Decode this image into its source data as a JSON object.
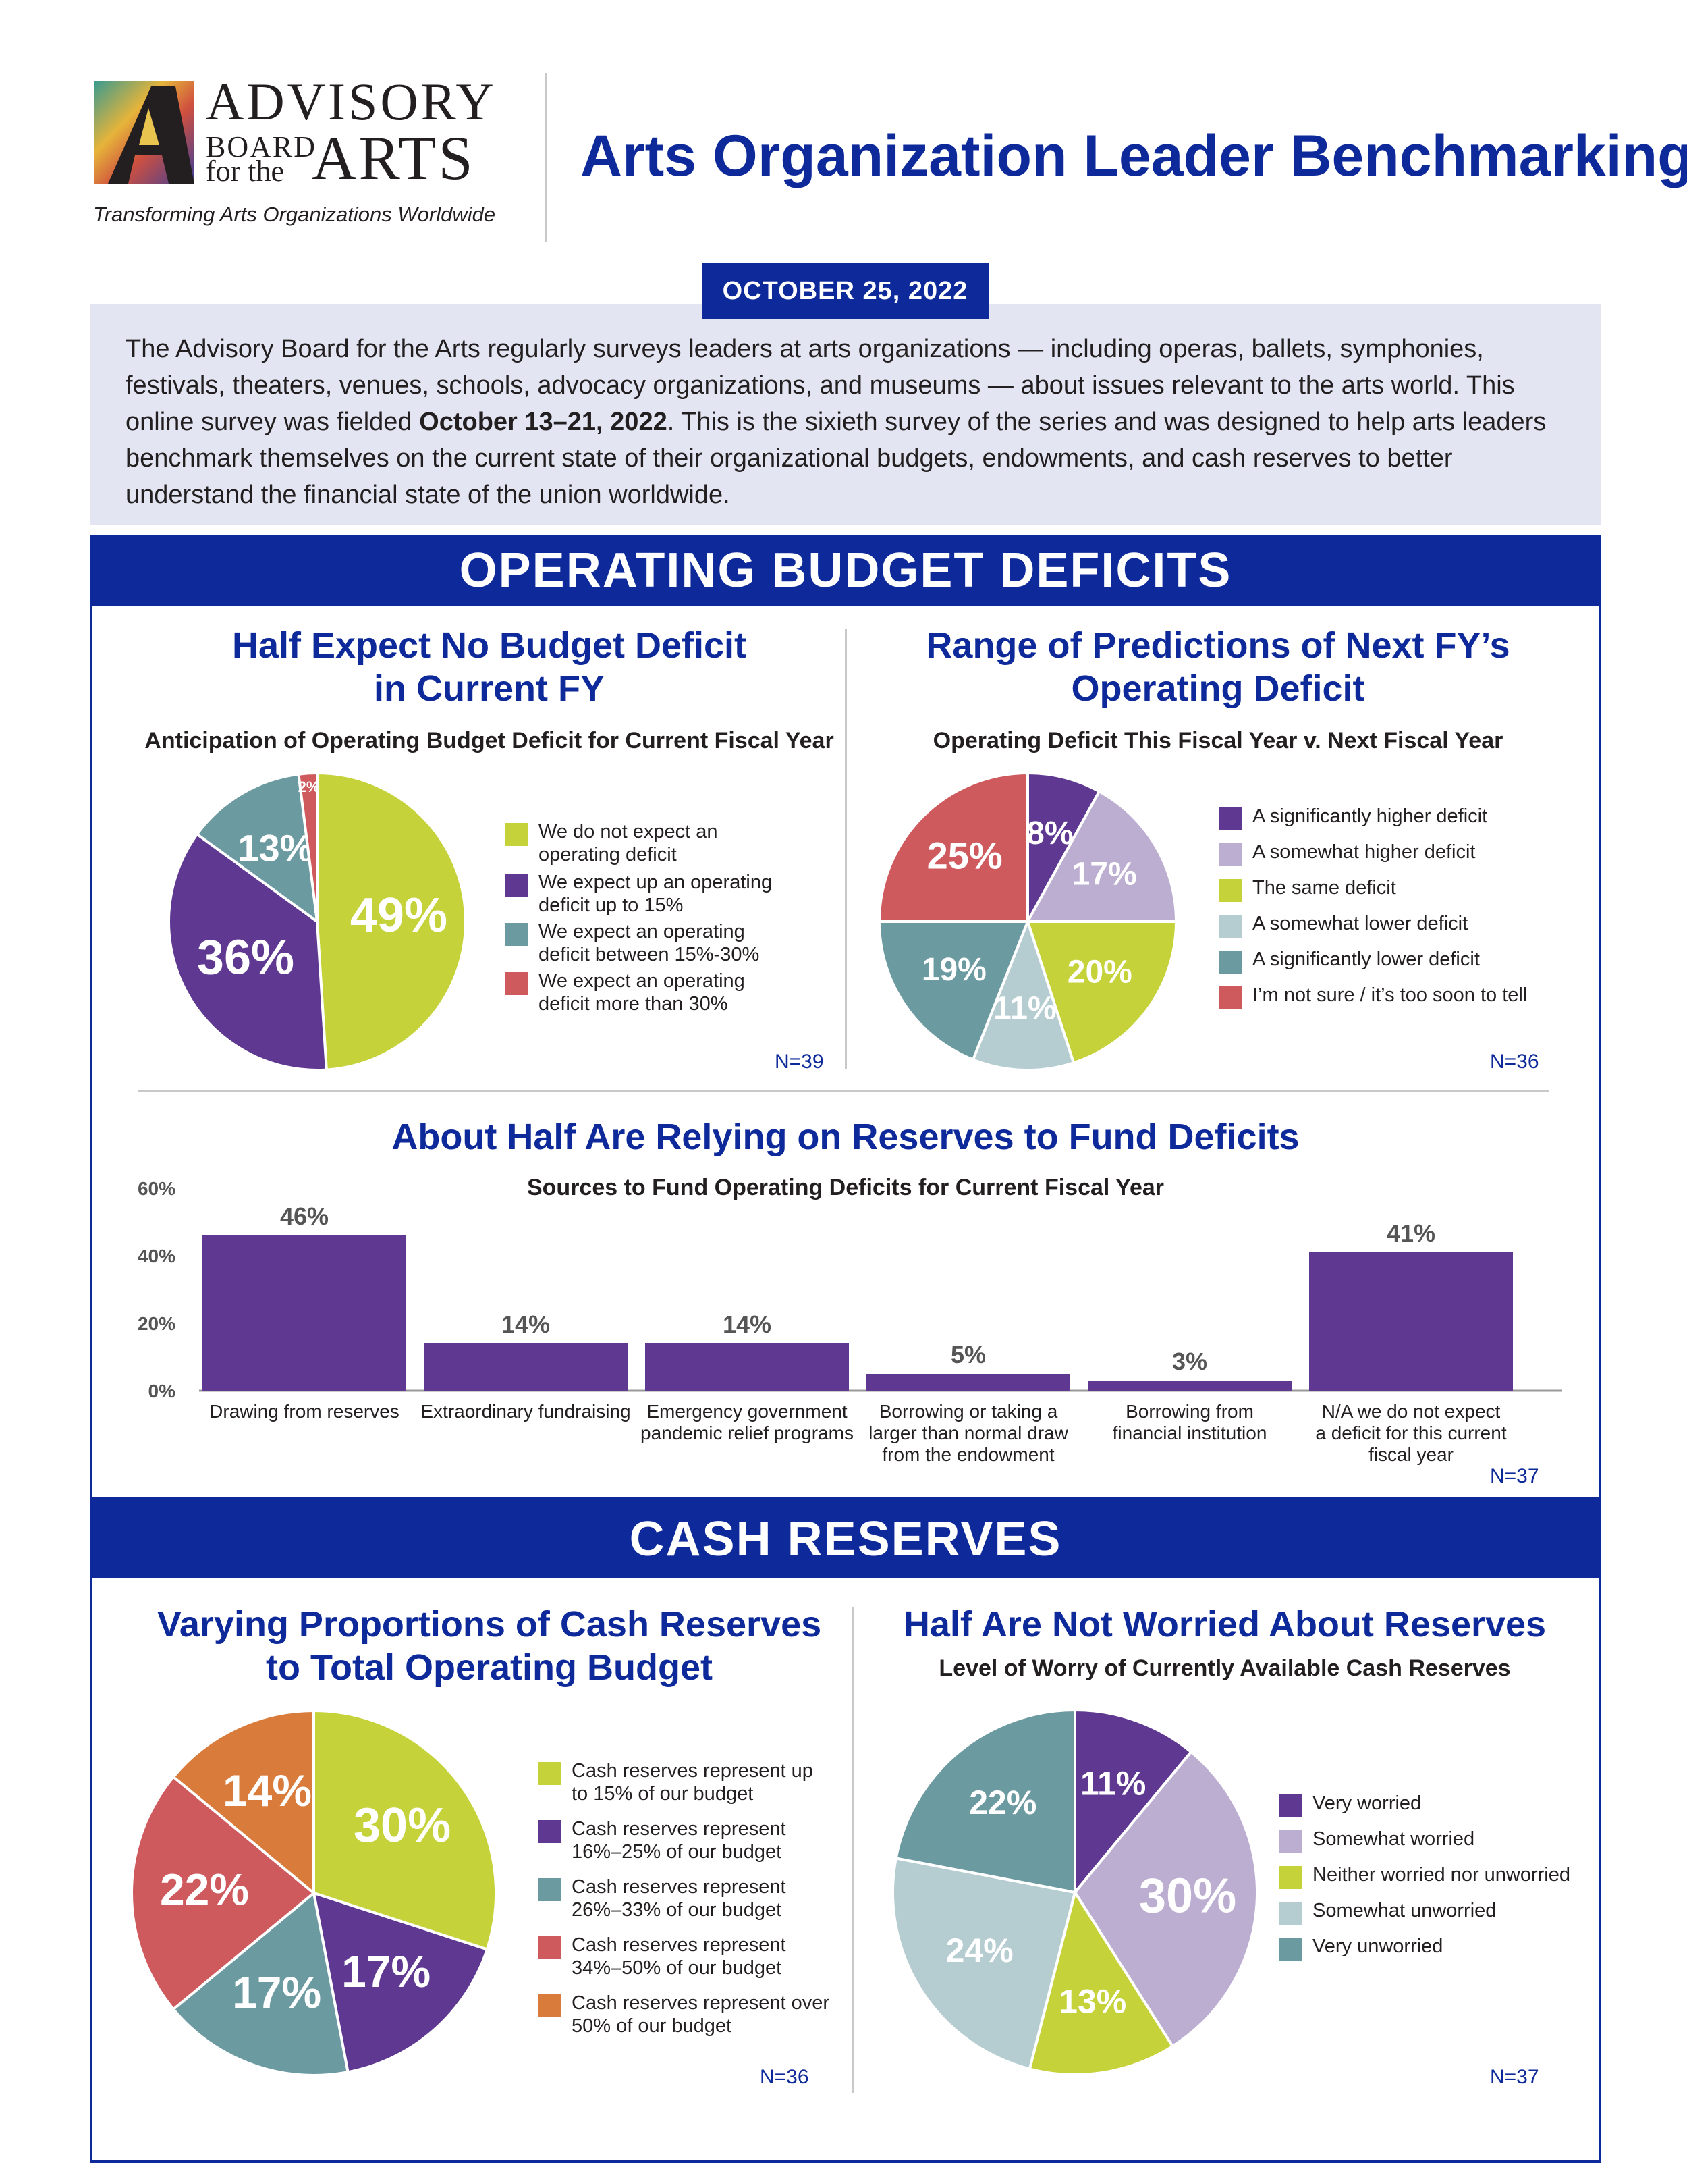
{
  "logo": {
    "line1": "ADVISORY",
    "line2": "BOARD",
    "line3": "for the",
    "line4": "ARTS",
    "tagline": "Transforming Arts Organizations Worldwide"
  },
  "header": {
    "title": "Arts Organization Leader Benchmarking",
    "date": "OCTOBER 25, 2022"
  },
  "intro": {
    "part1": "The Advisory Board for the Arts regularly surveys leaders at arts organizations — including  operas, ballets, symphonies, festivals, theaters, venues, schools, advocacy organizations, and museums — about issues relevant to the arts world. This online survey was fielded ",
    "bold": "October 13–21, 2022",
    "part2": ". This is the sixieth survey of the series and was designed to help arts leaders benchmark themselves on the current state of their organizational budgets, endowments, and cash reserves to better understand the financial state of the union worldwide."
  },
  "sections": {
    "operating": "OPERATING BUDGET DEFICITS",
    "cash": "CASH RESERVES"
  },
  "colors": {
    "navy": "#0e2a9a",
    "chartreuse": "#c5d23a",
    "purple": "#5e3891",
    "lavender": "#bcaed0",
    "teal": "#6c9aa1",
    "lightteal": "#b5cdd0",
    "red": "#cf5a5e",
    "orange": "#d87b3b"
  },
  "chart_data": [
    {
      "id": "pie1",
      "type": "pie",
      "title": "Half Expect No Budget Deficit in Current FY",
      "title_line1": "Half Expect No Budget Deficit",
      "title_line2": "in Current FY",
      "subtitle": "Anticipation of Operating Budget Deficit for Current Fiscal Year",
      "n": "N=39",
      "slices": [
        {
          "label": "We do not expect an operating deficit",
          "legend1": "We do not expect an",
          "legend2": "operating deficit",
          "value": 49,
          "text": "49%",
          "color": "#c5d23a"
        },
        {
          "label": "We expect up an operating deficit up to 15%",
          "legend1": "We expect up an operating",
          "legend2": "deficit up to 15%",
          "value": 36,
          "text": "36%",
          "color": "#5e3891"
        },
        {
          "label": "We expect an operating deficit between 15%-30%",
          "legend1": "We expect an operating",
          "legend2": "deficit between 15%-30%",
          "value": 13,
          "text": "13%",
          "color": "#6c9aa1"
        },
        {
          "label": "We expect an operating deficit more than 30%",
          "legend1": "We expect an operating",
          "legend2": "deficit more than 30%",
          "value": 2,
          "text": "2%",
          "color": "#cf5a5e"
        }
      ]
    },
    {
      "id": "pie2",
      "type": "pie",
      "title": "Range of Predictions of Next FY's Operating Deficit",
      "title_line1": "Range of Predictions of Next FY’s",
      "title_line2": "Operating Deficit",
      "subtitle": "Operating Deficit This Fiscal Year v. Next Fiscal Year",
      "n": "N=36",
      "slices": [
        {
          "label": "A significantly higher deficit",
          "value": 8,
          "text": "8%",
          "color": "#5e3891"
        },
        {
          "label": "A somewhat higher deficit",
          "value": 17,
          "text": "17%",
          "color": "#bcaed0"
        },
        {
          "label": "The same deficit",
          "value": 20,
          "text": "20%",
          "color": "#c5d23a"
        },
        {
          "label": "A somewhat lower deficit",
          "value": 11,
          "text": "11%",
          "color": "#b5cdd0"
        },
        {
          "label": "A significantly lower deficit",
          "value": 19,
          "text": "19%",
          "color": "#6c9aa1"
        },
        {
          "label": "I’m not sure / it’s too soon to tell",
          "value": 25,
          "text": "25%",
          "color": "#cf5a5e"
        }
      ]
    },
    {
      "id": "bar1",
      "type": "bar",
      "title": "About Half Are Relying on Reserves to Fund Deficits",
      "subtitle": "Sources to Fund Operating Deficits for Current Fiscal Year",
      "n": "N=37",
      "ylim": [
        0,
        60
      ],
      "yticks": [
        "60%",
        "40%",
        "20%",
        "0%"
      ],
      "categories": [
        [
          "Drawing from reserves"
        ],
        [
          "Extraordinary fundraising"
        ],
        [
          "Emergency government",
          "pandemic relief programs"
        ],
        [
          "Borrowing or taking a",
          "larger than normal draw",
          "from the endowment"
        ],
        [
          "Borrowing from",
          "financial institution"
        ],
        [
          "N/A we do not expect",
          "a deficit for this current",
          "fiscal year"
        ]
      ],
      "values": [
        46,
        14,
        14,
        5,
        3,
        41
      ],
      "labels": [
        "46%",
        "14%",
        "14%",
        "5%",
        "3%",
        "41%"
      ],
      "color": "#5e3891"
    },
    {
      "id": "pie3",
      "type": "pie",
      "title": "Varying Proportions of Cash Reserves to Total Operating Budget",
      "title_line1": "Varying Proportions of Cash Reserves",
      "title_line2": "to Total Operating Budget",
      "n": "N=36",
      "slices": [
        {
          "label": "Cash reserves represent up to 15% of our budget",
          "legend1": "Cash reserves represent up",
          "legend2": "to 15% of our budget",
          "value": 30,
          "text": "30%",
          "color": "#c5d23a"
        },
        {
          "label": "Cash reserves represent 16%–25% of our budget",
          "legend1": "Cash reserves represent",
          "legend2": "16%–25% of our budget",
          "value": 17,
          "text": "17%",
          "color": "#5e3891"
        },
        {
          "label": "Cash reserves represent 26%–33% of our budget",
          "legend1": "Cash reserves represent",
          "legend2": "26%–33% of our budget",
          "value": 17,
          "text": "17%",
          "color": "#6c9aa1"
        },
        {
          "label": "Cash reserves represent 34%–50% of our budget",
          "legend1": "Cash reserves represent",
          "legend2": "34%–50% of our budget",
          "value": 22,
          "text": "22%",
          "color": "#cf5a5e"
        },
        {
          "label": "Cash reserves represent over 50% of our budget",
          "legend1": "Cash reserves represent over",
          "legend2": "50% of our budget",
          "value": 14,
          "text": "14%",
          "color": "#d87b3b"
        }
      ]
    },
    {
      "id": "pie4",
      "type": "pie",
      "title": "Half Are Not Worried About Reserves",
      "subtitle": "Level of Worry of Currently Available Cash Reserves",
      "n": "N=37",
      "slices": [
        {
          "label": "Very worried",
          "value": 11,
          "text": "11%",
          "color": "#5e3891"
        },
        {
          "label": "Somewhat worried",
          "value": 30,
          "text": "30%",
          "color": "#bcaed0"
        },
        {
          "label": "Neither worried nor unworried",
          "value": 13,
          "text": "13%",
          "color": "#c5d23a"
        },
        {
          "label": "Somewhat unworried",
          "value": 24,
          "text": "24%",
          "color": "#b5cdd0"
        },
        {
          "label": "Very unworried",
          "value": 22,
          "text": "22%",
          "color": "#6c9aa1"
        }
      ]
    }
  ]
}
